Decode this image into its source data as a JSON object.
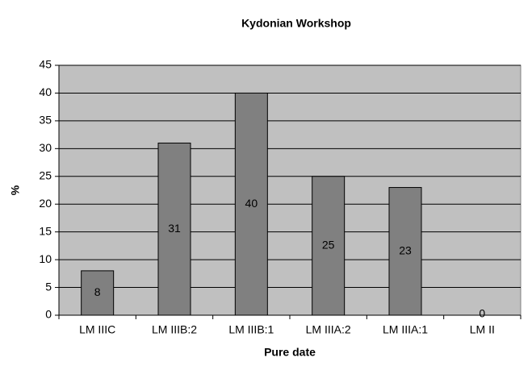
{
  "chart_data": {
    "type": "bar",
    "title": "Kydonian Workshop",
    "x_label": "Pure date",
    "y_label": "%",
    "categories": [
      "LM IIIC",
      "LM IIIB:2",
      "LM IIIB:1",
      "LM IIIA:2",
      "LM IIIA:1",
      "LM II"
    ],
    "values": [
      8,
      31,
      40,
      25,
      23,
      0
    ],
    "color": "#808080",
    "plot_background": "#c0c0c0",
    "ylim": [
      0,
      45
    ],
    "yticks": [
      0,
      5,
      10,
      15,
      20,
      25,
      30,
      35,
      40,
      45
    ],
    "grid": true,
    "data_labels": true
  }
}
